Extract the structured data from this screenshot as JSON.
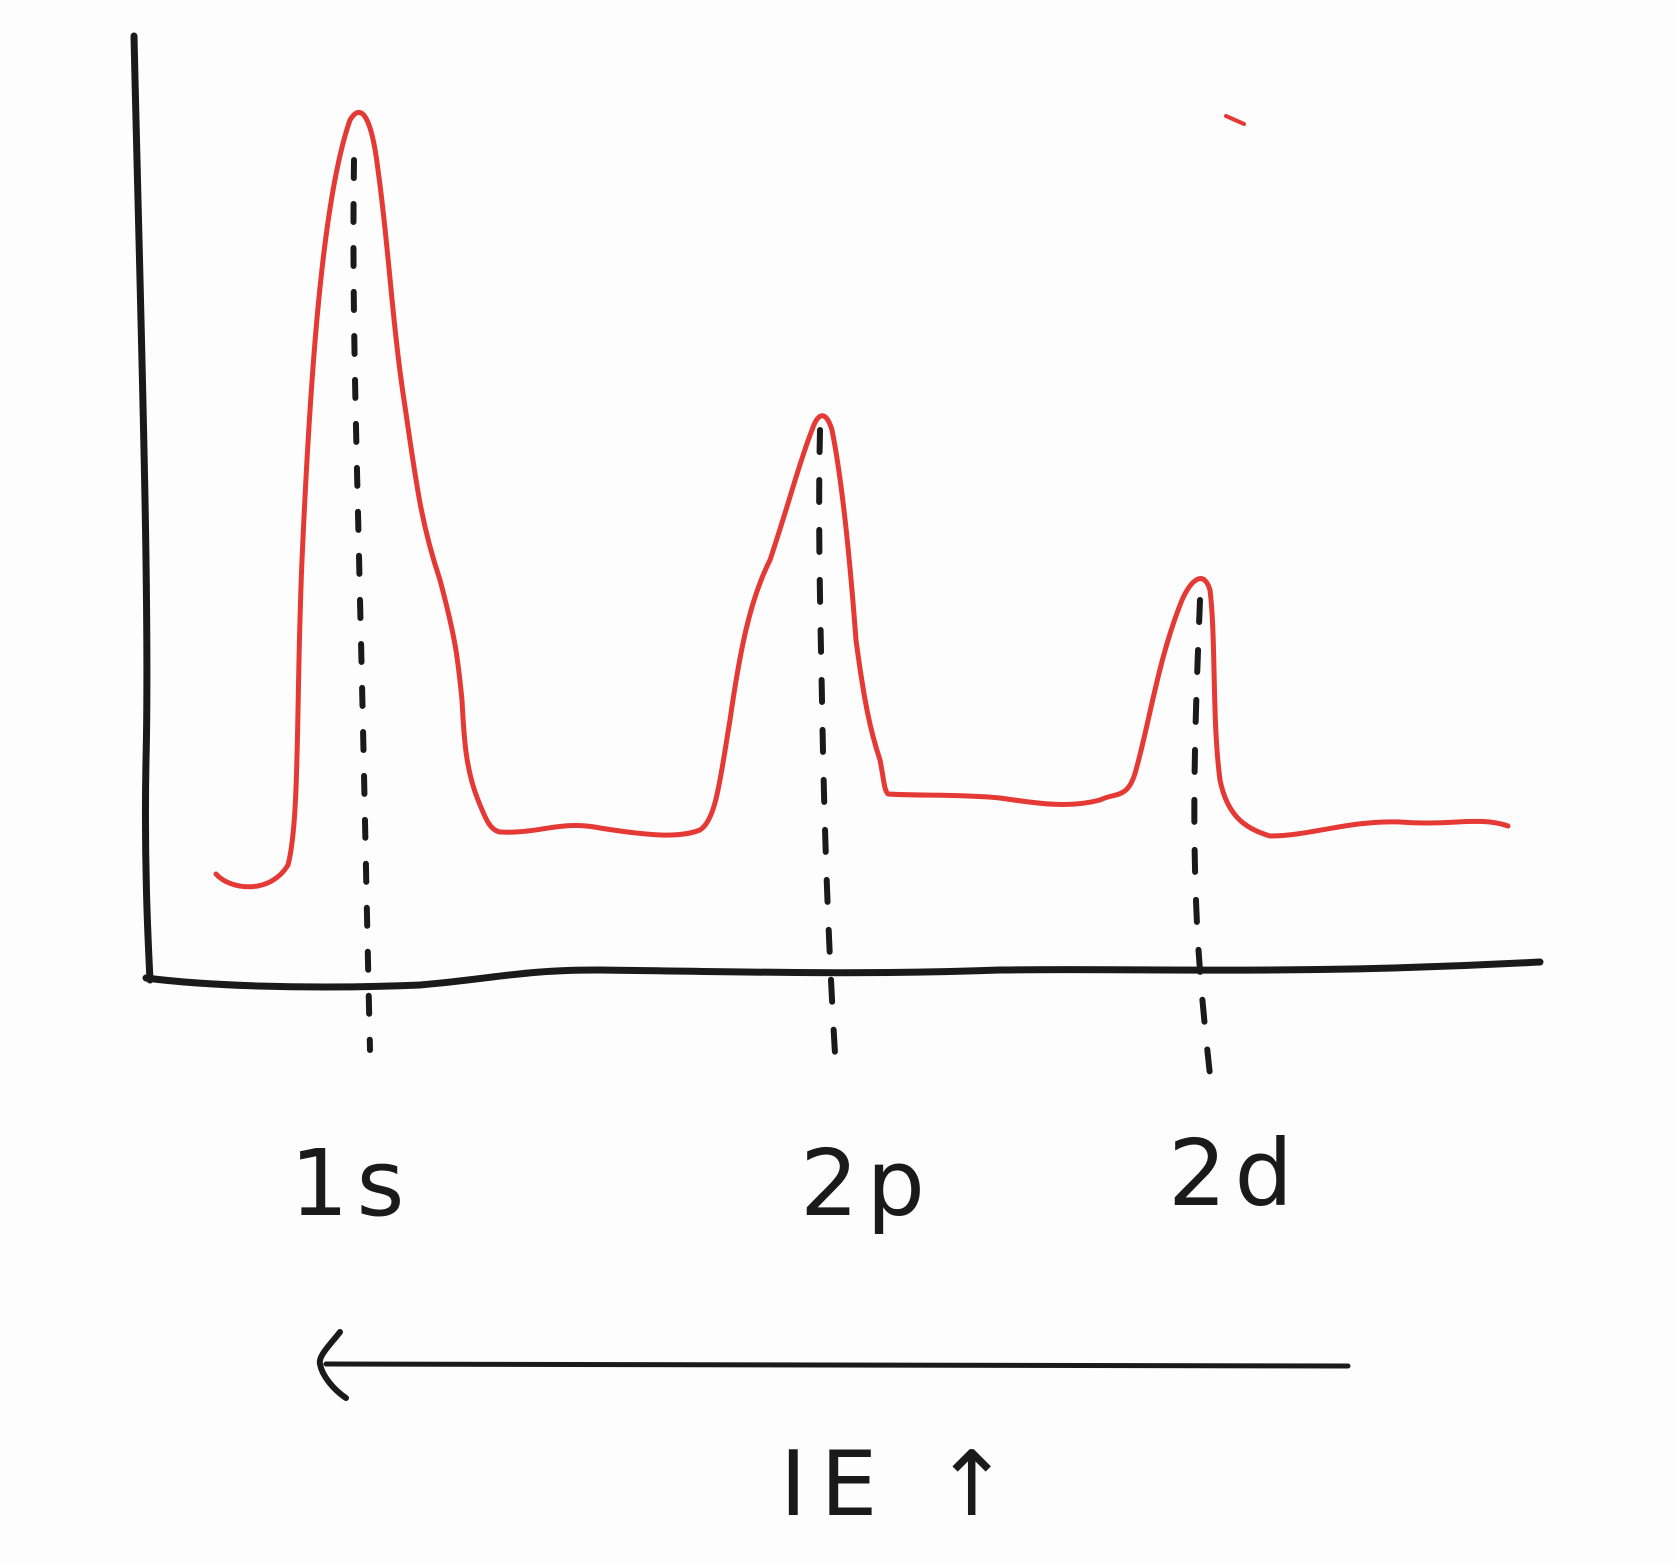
{
  "diagram": {
    "peaks": [
      {
        "id": "1s",
        "label": "1s"
      },
      {
        "id": "2p",
        "label": "2p"
      },
      {
        "id": "2d",
        "label": "2d"
      }
    ],
    "direction_label": "IE ↑",
    "colors": {
      "curve": "#e53935",
      "axes": "#1a1a1a",
      "dashed_lines": "#1a1a1a",
      "background": "#fdfdfd"
    }
  }
}
